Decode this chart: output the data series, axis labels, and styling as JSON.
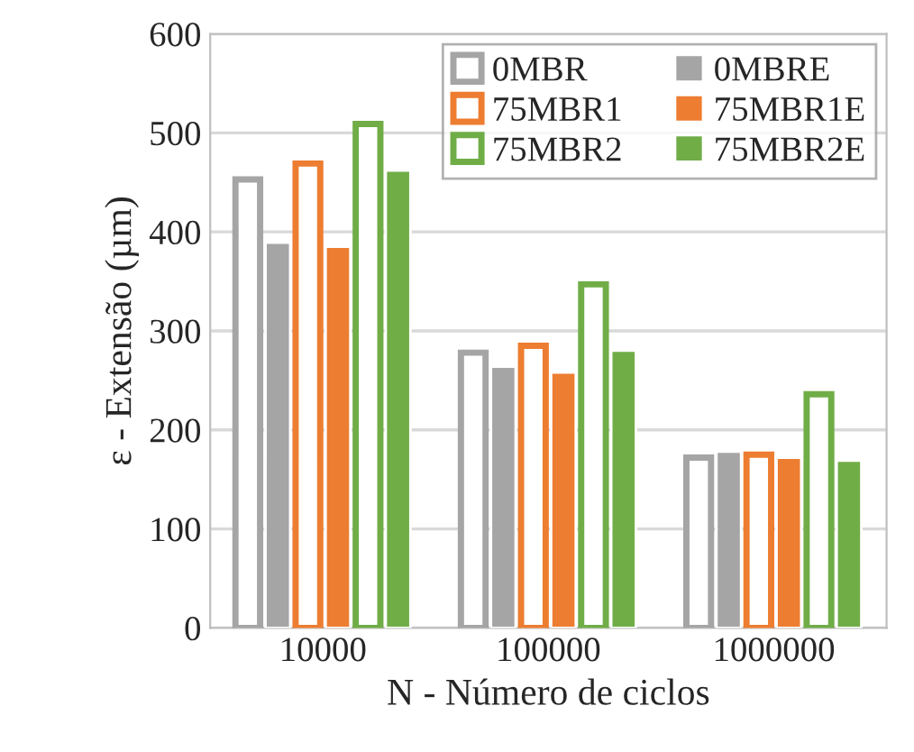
{
  "chart_data": {
    "type": "bar",
    "xlabel": "N - Número de ciclos",
    "ylabel": "ε - Extensão (µm)",
    "categories": [
      "10000",
      "100000",
      "1000000"
    ],
    "series": [
      {
        "name": "0MBR",
        "color": "#a5a5a5",
        "values": [
          453,
          278,
          172
        ]
      },
      {
        "name": "0MBRE",
        "color": "#a5a5a5",
        "values": [
          389,
          264,
          178
        ]
      },
      {
        "name": "75MBR1",
        "color": "#ed7d31",
        "values": [
          469,
          285,
          175
        ]
      },
      {
        "name": "75MBR1E",
        "color": "#ed7d31",
        "values": [
          385,
          258,
          172
        ]
      },
      {
        "name": "75MBR2",
        "color": "#70ad47",
        "values": [
          509,
          347,
          236
        ]
      },
      {
        "name": "75MBR2E",
        "color": "#70ad47",
        "values": [
          462,
          280,
          169
        ]
      }
    ],
    "ylim": [
      0,
      600
    ],
    "yticks": [
      0,
      100,
      200,
      300,
      400,
      500,
      600
    ],
    "grid": "y",
    "legend": "top right"
  }
}
